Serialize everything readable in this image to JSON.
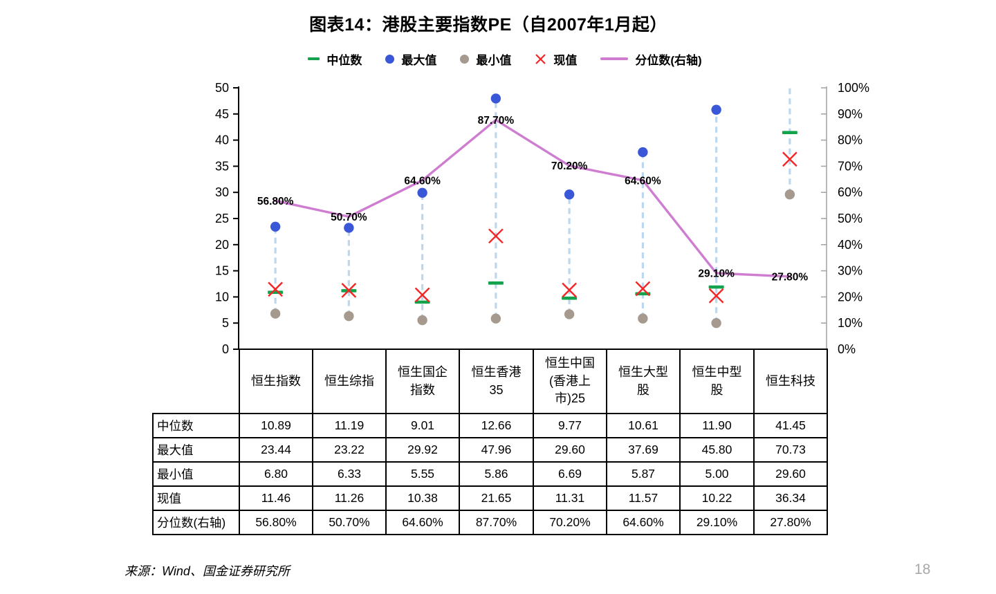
{
  "page": {
    "source": "来源：Wind、国金证券研究所",
    "number": "18"
  },
  "legend": [
    {
      "label": "中位数",
      "marker": "green-dash"
    },
    {
      "label": "最大值",
      "marker": "blue-dot"
    },
    {
      "label": "最小值",
      "marker": "gray-dot"
    },
    {
      "label": "现值",
      "marker": "red-x"
    },
    {
      "label": "分位数(右轴)",
      "marker": "pink-line"
    }
  ],
  "colors": {
    "median_green": "#12A34C",
    "max_blue": "#3A57D8",
    "min_gray": "#A6998D",
    "current_red": "#F42525",
    "percentile_pink": "#CE7DD1",
    "range_dash_blue": "#BDD7EE",
    "left_axis": "#000000",
    "right_axis": "#A6A6A6",
    "label_text": "#000000",
    "page_number_gray": "#A8A8A8"
  },
  "chart_data": {
    "type": "range-marker chart with percentile line (dot plot + line, dual axis)",
    "title": "图表14：港股主要指数PE（自2007年1月起）",
    "categories": [
      "恒生指数",
      "恒生综指",
      "恒生国企指数",
      "恒生香港35",
      "恒生中国(香港上市)25",
      "恒生大型股",
      "恒生中型股",
      "恒生科技"
    ],
    "series": [
      {
        "name": "中位数",
        "marker": "green-dash",
        "axis": "left",
        "values": [
          10.89,
          11.19,
          9.01,
          12.66,
          9.77,
          10.61,
          11.9,
          41.45
        ]
      },
      {
        "name": "最大值",
        "marker": "blue-dot",
        "axis": "left",
        "values": [
          23.44,
          23.22,
          29.92,
          47.96,
          29.6,
          37.69,
          45.8,
          70.73
        ]
      },
      {
        "name": "最小值",
        "marker": "gray-dot",
        "axis": "left",
        "values": [
          6.8,
          6.33,
          5.55,
          5.86,
          6.69,
          5.87,
          5.0,
          29.6
        ]
      },
      {
        "name": "现值",
        "marker": "red-x",
        "axis": "left",
        "values": [
          11.46,
          11.26,
          10.38,
          21.65,
          11.31,
          11.57,
          10.22,
          36.34
        ]
      },
      {
        "name": "分位数(右轴)",
        "marker": "pink-line",
        "axis": "right",
        "values": [
          56.8,
          50.7,
          64.6,
          87.7,
          70.2,
          64.6,
          29.1,
          27.8
        ]
      }
    ],
    "point_labels": [
      "56.80%",
      "50.70%",
      "64.60%",
      "87.70%",
      "70.20%",
      "64.60%",
      "29.10%",
      "27.80%"
    ],
    "left_axis": {
      "min": 0,
      "max": 50,
      "step": 5,
      "ticks": [
        "50",
        "45",
        "40",
        "35",
        "30",
        "25",
        "20",
        "15",
        "10",
        "5",
        "0"
      ]
    },
    "right_axis": {
      "min": 0,
      "max": 100,
      "step": 10,
      "ticks": [
        "100%",
        "90%",
        "80%",
        "70%",
        "60%",
        "50%",
        "40%",
        "30%",
        "20%",
        "10%",
        "0%"
      ]
    },
    "grid": false,
    "legend_position": "top"
  },
  "table": {
    "col_headers": [
      "恒生指数",
      "恒生综指",
      "恒生国企指数",
      "恒生香港35",
      "恒生中国(香港上市)25",
      "恒生大型股",
      "恒生中型股",
      "恒生科技"
    ],
    "rows": [
      {
        "label": "中位数",
        "cells": [
          "10.89",
          "11.19",
          "9.01",
          "12.66",
          "9.77",
          "10.61",
          "11.90",
          "41.45"
        ]
      },
      {
        "label": "最大值",
        "cells": [
          "23.44",
          "23.22",
          "29.92",
          "47.96",
          "29.60",
          "37.69",
          "45.80",
          "70.73"
        ]
      },
      {
        "label": "最小值",
        "cells": [
          "6.80",
          "6.33",
          "5.55",
          "5.86",
          "6.69",
          "5.87",
          "5.00",
          "29.60"
        ]
      },
      {
        "label": "现值",
        "cells": [
          "11.46",
          "11.26",
          "10.38",
          "21.65",
          "11.31",
          "11.57",
          "10.22",
          "36.34"
        ]
      },
      {
        "label": "分位数(右轴)",
        "cells": [
          "56.80%",
          "50.70%",
          "64.60%",
          "87.70%",
          "70.20%",
          "64.60%",
          "29.10%",
          "27.80%"
        ]
      }
    ]
  }
}
